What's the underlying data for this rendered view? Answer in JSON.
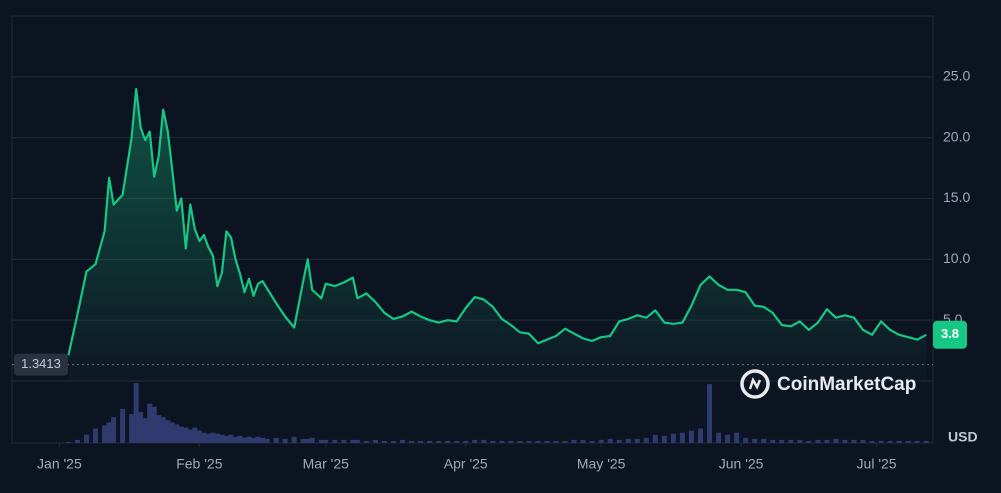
{
  "chart_data": {
    "type": "line",
    "x": [
      2,
      4,
      6,
      8,
      10,
      11,
      12,
      14,
      16,
      17,
      18,
      19,
      20,
      21,
      22,
      23,
      24,
      25,
      26,
      27,
      28,
      29,
      30,
      31,
      32,
      33,
      34,
      35,
      36,
      37,
      38,
      39,
      40,
      41,
      42,
      43,
      44,
      45,
      46,
      48,
      50,
      52,
      54,
      55,
      56,
      58,
      59,
      61,
      63,
      65,
      66,
      68,
      70,
      72,
      74,
      76,
      78,
      80,
      82,
      84,
      86,
      88,
      90,
      92,
      94,
      96,
      98,
      100,
      102,
      104,
      106,
      108,
      110,
      112,
      114,
      116,
      118,
      120,
      122,
      124,
      126,
      128,
      130,
      132,
      134,
      136,
      138,
      140,
      142,
      144,
      146,
      148,
      150,
      152,
      154,
      156,
      158,
      160,
      162,
      164,
      166,
      168,
      170,
      172,
      174,
      176,
      178,
      180,
      182,
      184,
      186,
      188,
      190,
      192
    ],
    "series": [
      {
        "color": "#16c784",
        "values": [
          2.1,
          5.5,
          9.0,
          9.6,
          12.3,
          16.7,
          14.5,
          15.3,
          20.0,
          24.0,
          20.8,
          19.8,
          20.5,
          16.8,
          18.5,
          22.3,
          20.5,
          17.3,
          14.0,
          15.0,
          10.9,
          14.5,
          12.5,
          11.5,
          12.0,
          11.0,
          10.3,
          7.8,
          8.9,
          12.3,
          11.8,
          10.0,
          8.8,
          7.3,
          8.4,
          7.0,
          8.0,
          8.2,
          7.6,
          6.4,
          5.3,
          4.4,
          8.2,
          10.0,
          7.5,
          6.8,
          8.0,
          7.8,
          8.1,
          8.5,
          6.8,
          7.2,
          6.5,
          5.6,
          5.1,
          5.3,
          5.7,
          5.3,
          5.0,
          4.8,
          5.0,
          4.9,
          6.0,
          6.9,
          6.7,
          6.1,
          5.1,
          4.6,
          4.0,
          3.9,
          3.1,
          3.4,
          3.7,
          4.3,
          3.9,
          3.5,
          3.3,
          3.6,
          3.7,
          4.9,
          5.1,
          5.4,
          5.2,
          5.8,
          4.8,
          4.7,
          4.8,
          6.2,
          7.9,
          8.6,
          7.9,
          7.5,
          7.5,
          7.3,
          6.2,
          6.1,
          5.6,
          4.6,
          4.5,
          4.9,
          4.2,
          4.8,
          5.9,
          5.2,
          5.4,
          5.2,
          4.2,
          3.8,
          4.9,
          4.2,
          3.8,
          3.6,
          3.4,
          3.8
        ]
      },
      {
        "color": "#2f3a6e",
        "axis": "volume",
        "values": [
          1,
          3,
          8,
          14,
          17,
          20,
          25,
          33,
          28,
          58,
          30,
          24,
          38,
          35,
          27,
          25,
          22,
          20,
          18,
          16,
          15,
          13,
          15,
          12,
          10,
          9,
          10,
          9,
          8,
          7,
          8,
          6,
          7,
          5,
          6,
          5,
          6,
          5,
          4,
          5,
          4,
          6,
          4,
          4,
          5,
          3,
          3,
          3,
          3,
          3,
          3,
          2,
          3,
          2,
          2,
          3,
          2,
          2,
          2,
          2,
          2,
          2,
          2,
          3,
          3,
          2,
          2,
          2,
          2,
          2,
          2,
          2,
          2,
          2,
          3,
          3,
          2,
          3,
          4,
          3,
          4,
          4,
          5,
          8,
          7,
          9,
          10,
          12,
          14,
          57,
          10,
          8,
          10,
          5,
          4,
          4,
          3,
          3,
          3,
          3,
          2,
          3,
          3,
          4,
          3,
          3,
          3,
          2,
          2,
          2,
          2,
          2,
          2,
          2
        ]
      }
    ],
    "xlim": [
      -10.5,
      193.5
    ],
    "xticks": [
      {
        "value": 0,
        "label": "Jan '25"
      },
      {
        "value": 31,
        "label": "Feb '25"
      },
      {
        "value": 59,
        "label": "Mar '25"
      },
      {
        "value": 90,
        "label": "Apr '25"
      },
      {
        "value": 120,
        "label": "May '25"
      },
      {
        "value": 151,
        "label": "Jun '25"
      },
      {
        "value": 181,
        "label": "Jul '25"
      }
    ],
    "ylim": [
      0,
      30
    ],
    "yticks": [
      {
        "value": 5,
        "label": "5.0"
      },
      {
        "value": 10,
        "label": "10.0"
      },
      {
        "value": 15,
        "label": "15.0"
      },
      {
        "value": 20,
        "label": "20.0"
      },
      {
        "value": 25,
        "label": "25.0"
      }
    ],
    "volume_lim": [
      0,
      60
    ],
    "grid": true,
    "open_price": 1.3413,
    "current_price": 3.8,
    "currency": "USD",
    "watermark": "CoinMarketCap"
  }
}
